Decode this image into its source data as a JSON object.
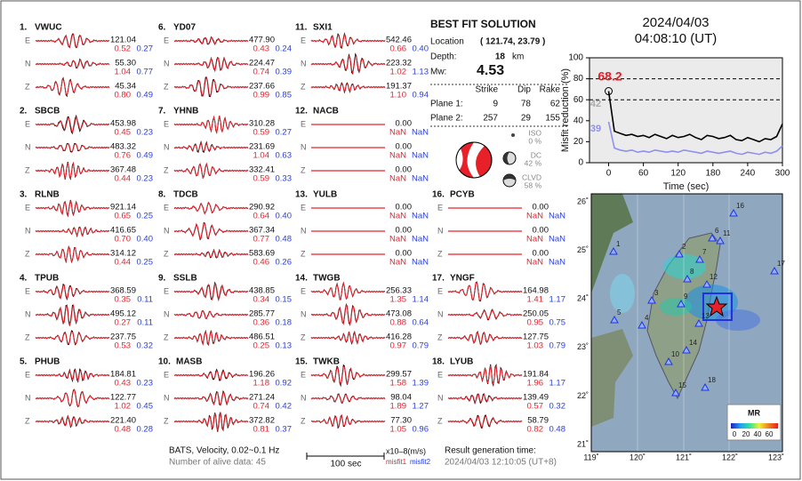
{
  "header": {
    "date": "2024/04/03",
    "time": "04:08:10  (UT)"
  },
  "stations": [
    {
      "number": "1.",
      "name": "VWUC",
      "traces": [
        {
          "component": "E",
          "amplitude": "121.04",
          "misfit1": "0.52",
          "misfit2": "0.27"
        },
        {
          "component": "N",
          "amplitude": "55.30",
          "misfit1": "1.04",
          "misfit2": "0.77"
        },
        {
          "component": "Z",
          "amplitude": "45.34",
          "misfit1": "0.80",
          "misfit2": "0.49"
        }
      ]
    },
    {
      "number": "2.",
      "name": "SBCB",
      "traces": [
        {
          "component": "E",
          "amplitude": "453.98",
          "misfit1": "0.45",
          "misfit2": "0.23"
        },
        {
          "component": "N",
          "amplitude": "483.32",
          "misfit1": "0.76",
          "misfit2": "0.49"
        },
        {
          "component": "Z",
          "amplitude": "367.48",
          "misfit1": "0.44",
          "misfit2": "0.23"
        }
      ]
    },
    {
      "number": "3.",
      "name": "RLNB",
      "traces": [
        {
          "component": "E",
          "amplitude": "921.14",
          "misfit1": "0.65",
          "misfit2": "0.25"
        },
        {
          "component": "N",
          "amplitude": "416.65",
          "misfit1": "0.70",
          "misfit2": "0.40"
        },
        {
          "component": "Z",
          "amplitude": "314.12",
          "misfit1": "0.44",
          "misfit2": "0.25"
        }
      ]
    },
    {
      "number": "4.",
      "name": "TPUB",
      "traces": [
        {
          "component": "E",
          "amplitude": "368.59",
          "misfit1": "0.35",
          "misfit2": "0.11"
        },
        {
          "component": "N",
          "amplitude": "495.12",
          "misfit1": "0.27",
          "misfit2": "0.11"
        },
        {
          "component": "Z",
          "amplitude": "237.75",
          "misfit1": "0.53",
          "misfit2": "0.32"
        }
      ]
    },
    {
      "number": "5.",
      "name": "PHUB",
      "traces": [
        {
          "component": "E",
          "amplitude": "184.81",
          "misfit1": "0.43",
          "misfit2": "0.23"
        },
        {
          "component": "N",
          "amplitude": "122.77",
          "misfit1": "1.02",
          "misfit2": "0.45"
        },
        {
          "component": "Z",
          "amplitude": "221.40",
          "misfit1": "0.48",
          "misfit2": "0.28"
        }
      ]
    },
    {
      "number": "6.",
      "name": "YD07",
      "traces": [
        {
          "component": "E",
          "amplitude": "477.90",
          "misfit1": "0.43",
          "misfit2": "0.24"
        },
        {
          "component": "N",
          "amplitude": "224.47",
          "misfit1": "0.74",
          "misfit2": "0.39"
        },
        {
          "component": "Z",
          "amplitude": "237.66",
          "misfit1": "0.99",
          "misfit2": "0.85"
        }
      ]
    },
    {
      "number": "7.",
      "name": "YHNB",
      "traces": [
        {
          "component": "E",
          "amplitude": "310.28",
          "misfit1": "0.59",
          "misfit2": "0.27"
        },
        {
          "component": "N",
          "amplitude": "231.69",
          "misfit1": "1.04",
          "misfit2": "0.63"
        },
        {
          "component": "Z",
          "amplitude": "332.41",
          "misfit1": "0.59",
          "misfit2": "0.33"
        }
      ]
    },
    {
      "number": "8.",
      "name": "TDCB",
      "traces": [
        {
          "component": "E",
          "amplitude": "290.92",
          "misfit1": "0.64",
          "misfit2": "0.40"
        },
        {
          "component": "N",
          "amplitude": "367.34",
          "misfit1": "0.77",
          "misfit2": "0.48"
        },
        {
          "component": "Z",
          "amplitude": "583.69",
          "misfit1": "0.46",
          "misfit2": "0.26"
        }
      ]
    },
    {
      "number": "9.",
      "name": "SSLB",
      "traces": [
        {
          "component": "E",
          "amplitude": "438.85",
          "misfit1": "0.34",
          "misfit2": "0.15"
        },
        {
          "component": "N",
          "amplitude": "285.77",
          "misfit1": "0.36",
          "misfit2": "0.18"
        },
        {
          "component": "Z",
          "amplitude": "486.51",
          "misfit1": "0.25",
          "misfit2": "0.13"
        }
      ]
    },
    {
      "number": "10.",
      "name": "MASB",
      "traces": [
        {
          "component": "E",
          "amplitude": "196.26",
          "misfit1": "1.18",
          "misfit2": "0.92"
        },
        {
          "component": "N",
          "amplitude": "271.24",
          "misfit1": "0.74",
          "misfit2": "0.42"
        },
        {
          "component": "Z",
          "amplitude": "372.82",
          "misfit1": "0.81",
          "misfit2": "0.37"
        }
      ]
    },
    {
      "number": "11.",
      "name": "SXI1",
      "traces": [
        {
          "component": "E",
          "amplitude": "542.46",
          "misfit1": "0.66",
          "misfit2": "0.40"
        },
        {
          "component": "N",
          "amplitude": "223.32",
          "misfit1": "1.02",
          "misfit2": "1.13"
        },
        {
          "component": "Z",
          "amplitude": "191.37",
          "misfit1": "1.10",
          "misfit2": "0.94"
        }
      ]
    },
    {
      "number": "12.",
      "name": "NACB",
      "traces": [
        {
          "component": "E",
          "amplitude": "0.00",
          "misfit1": "NaN",
          "misfit2": "NaN"
        },
        {
          "component": "N",
          "amplitude": "0.00",
          "misfit1": "NaN",
          "misfit2": "NaN"
        },
        {
          "component": "Z",
          "amplitude": "0.00",
          "misfit1": "NaN",
          "misfit2": "NaN"
        }
      ]
    },
    {
      "number": "13.",
      "name": "YULB",
      "traces": [
        {
          "component": "E",
          "amplitude": "0.00",
          "misfit1": "NaN",
          "misfit2": "NaN"
        },
        {
          "component": "N",
          "amplitude": "0.00",
          "misfit1": "NaN",
          "misfit2": "NaN"
        },
        {
          "component": "Z",
          "amplitude": "0.00",
          "misfit1": "NaN",
          "misfit2": "NaN"
        }
      ]
    },
    {
      "number": "14.",
      "name": "TWGB",
      "traces": [
        {
          "component": "E",
          "amplitude": "256.33",
          "misfit1": "1.35",
          "misfit2": "1.14"
        },
        {
          "component": "N",
          "amplitude": "473.08",
          "misfit1": "0.88",
          "misfit2": "0.64"
        },
        {
          "component": "Z",
          "amplitude": "416.28",
          "misfit1": "0.97",
          "misfit2": "0.79"
        }
      ]
    },
    {
      "number": "15.",
      "name": "TWKB",
      "traces": [
        {
          "component": "E",
          "amplitude": "299.57",
          "misfit1": "1.58",
          "misfit2": "1.39"
        },
        {
          "component": "N",
          "amplitude": "98.04",
          "misfit1": "1.89",
          "misfit2": "1.27"
        },
        {
          "component": "Z",
          "amplitude": "77.30",
          "misfit1": "1.05",
          "misfit2": "0.96"
        }
      ]
    },
    {
      "number": "16.",
      "name": "PCYB",
      "traces": [
        {
          "component": "E",
          "amplitude": "0.00",
          "misfit1": "NaN",
          "misfit2": "NaN"
        },
        {
          "component": "N",
          "amplitude": "0.00",
          "misfit1": "NaN",
          "misfit2": "NaN"
        },
        {
          "component": "Z",
          "amplitude": "0.00",
          "misfit1": "NaN",
          "misfit2": "NaN"
        }
      ]
    },
    {
      "number": "17.",
      "name": "YNGF",
      "traces": [
        {
          "component": "E",
          "amplitude": "164.98",
          "misfit1": "1.41",
          "misfit2": "1.17"
        },
        {
          "component": "N",
          "amplitude": "250.05",
          "misfit1": "0.95",
          "misfit2": "0.75"
        },
        {
          "component": "Z",
          "amplitude": "127.75",
          "misfit1": "1.03",
          "misfit2": "0.79"
        }
      ]
    },
    {
      "number": "18.",
      "name": "LYUB",
      "traces": [
        {
          "component": "E",
          "amplitude": "191.84",
          "misfit1": "1.96",
          "misfit2": "1.17"
        },
        {
          "component": "N",
          "amplitude": "139.49",
          "misfit1": "0.57",
          "misfit2": "0.32"
        },
        {
          "component": "Z",
          "amplitude": "58.79",
          "misfit1": "0.82",
          "misfit2": "0.48"
        }
      ]
    }
  ],
  "solution": {
    "title": "BEST FIT SOLUTION",
    "location_label": "Location",
    "location": "( 121.74, 23.79 )",
    "depth_label": "Depth:",
    "depth": "18",
    "depth_unit": "km",
    "mw_label": "Mw:",
    "mw": "4.53",
    "columns": [
      "Strike",
      "Dip",
      "Rake"
    ],
    "planes": [
      {
        "label": "Plane 1:",
        "values": [
          "9",
          "78",
          "62"
        ]
      },
      {
        "label": "Plane 2:",
        "values": [
          "257",
          "29",
          "155"
        ]
      }
    ],
    "components": [
      {
        "label": "ISO",
        "percent": "0 %"
      },
      {
        "label": "DC",
        "percent": "42 %"
      },
      {
        "label": "CLVD",
        "percent": "58 %"
      }
    ]
  },
  "chart_data": {
    "type": "line",
    "ylabel": "Misfit reduction (%)",
    "xlabel": "Time (sec)",
    "xlim": [
      -33,
      300
    ],
    "ylim": [
      0,
      100
    ],
    "xticks": [
      0,
      60,
      120,
      180,
      240,
      300
    ],
    "yticks": [
      0,
      20,
      40,
      60,
      80,
      100
    ],
    "dashed_lines": [
      60,
      80
    ],
    "x": [
      0,
      10,
      20,
      30,
      40,
      50,
      60,
      70,
      80,
      90,
      100,
      110,
      120,
      130,
      140,
      150,
      160,
      170,
      180,
      190,
      200,
      210,
      220,
      230,
      240,
      250,
      260,
      270,
      280,
      290,
      300
    ],
    "series": [
      {
        "color": "#000000",
        "values": [
          68.2,
          30,
          28,
          26,
          27,
          25,
          26,
          24,
          27,
          25,
          23,
          26,
          24,
          25,
          27,
          24,
          22,
          26,
          25,
          23,
          24,
          26,
          22,
          21,
          24,
          22,
          20,
          23,
          22,
          25,
          37
        ]
      },
      {
        "color": "#8f8ff0",
        "values": [
          39,
          14,
          12,
          11,
          12,
          10,
          11,
          10,
          12,
          11,
          10,
          11,
          10,
          12,
          11,
          10,
          9,
          11,
          10,
          9,
          10,
          11,
          9,
          8,
          10,
          9,
          8,
          10,
          9,
          11,
          16
        ]
      }
    ],
    "annotations": [
      {
        "text": "68.2",
        "color": "#e8202a"
      },
      {
        "text": "42",
        "color": "#aaaaaa"
      },
      {
        "text": "39",
        "color": "#8f8ff0"
      }
    ]
  },
  "map": {
    "lon_labels": [
      "119˚",
      "120˚",
      "121˚",
      "122˚",
      "123˚"
    ],
    "lat_labels": [
      "26˚",
      "25˚",
      "24˚",
      "23˚",
      "22˚",
      "21˚"
    ],
    "stations": [
      "1",
      "2",
      "3",
      "4",
      "5",
      "6",
      "7",
      "8",
      "9",
      "10",
      "11",
      "12",
      "13",
      "14",
      "15",
      "16",
      "17",
      "18"
    ],
    "colorbar_title": "MR",
    "colorbar_labels": [
      "0",
      "20",
      "40",
      "60"
    ]
  },
  "footer": {
    "source": "BATS, Velocity, 0.02~0.1 Hz",
    "alive": "Number of alive data: 45",
    "scale": "100 sec",
    "units": "x10–8(m/s)",
    "misfit1": "misfit1",
    "misfit2": "misfit2",
    "generated_label": "Result generation time:",
    "generated": "2024/04/03 12:10:05 (UT+8)"
  }
}
